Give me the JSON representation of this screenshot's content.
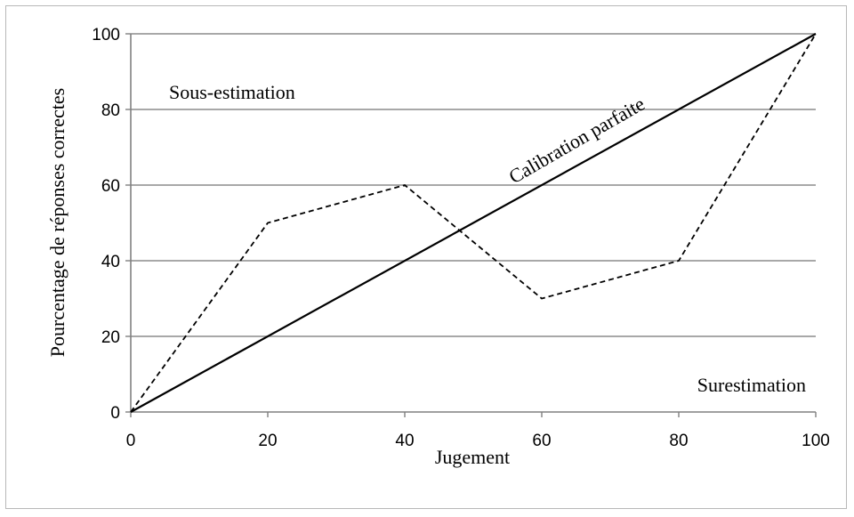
{
  "chart_data": {
    "type": "line",
    "xlabel": "Jugement",
    "ylabel": "Pourcentage de réponses correctes",
    "xlim": [
      0,
      100
    ],
    "ylim": [
      0,
      100
    ],
    "x_ticks": [
      "0",
      "20",
      "40",
      "60",
      "80",
      "100"
    ],
    "y_ticks": [
      "0",
      "20",
      "40",
      "60",
      "80",
      "100"
    ],
    "grid": "horizontal",
    "legend": "none",
    "series": [
      {
        "style": "solid",
        "color": "#000000",
        "x": [
          0,
          100
        ],
        "y": [
          0,
          100
        ]
      },
      {
        "style": "dashed",
        "color": "#000000",
        "x": [
          0,
          20,
          40,
          60,
          80,
          100
        ],
        "y": [
          0,
          50,
          60,
          30,
          40,
          100
        ]
      }
    ],
    "annotations": [
      {
        "text": "Sous-estimation"
      },
      {
        "text": "Calibration parfaite"
      },
      {
        "text": "Surestimation"
      }
    ]
  },
  "colors": {
    "grid": "#8c8c8c",
    "axis": "#808080",
    "frame": "#b8b8b8"
  }
}
